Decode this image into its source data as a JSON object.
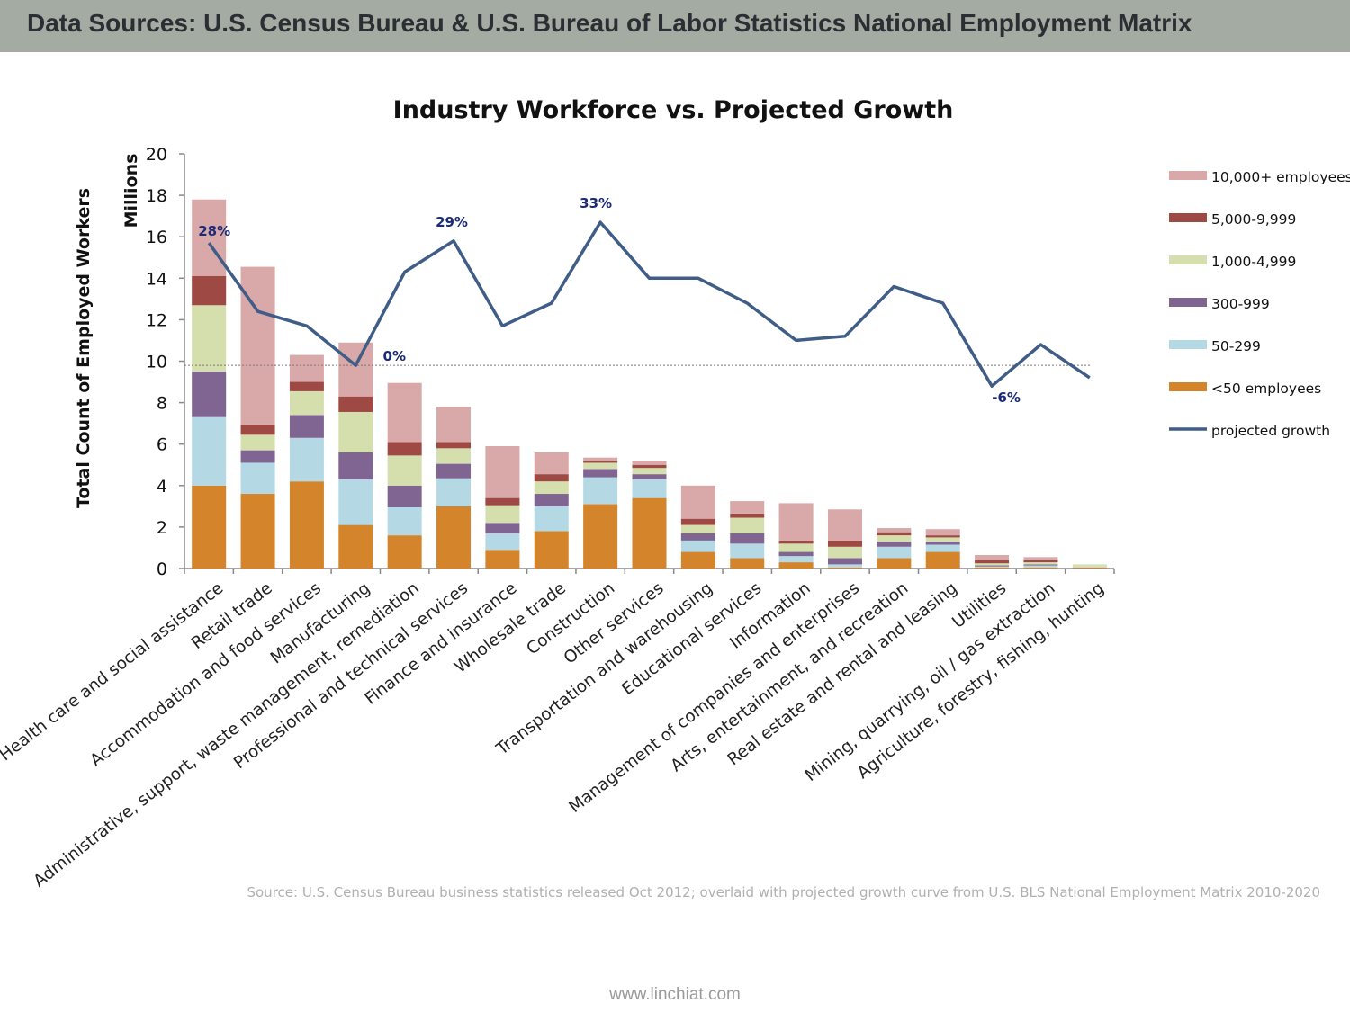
{
  "header": {
    "title": "Data Sources: U.S. Census Bureau & U.S. Bureau of Labor Statistics National Employment Matrix"
  },
  "footer": {
    "url": "www.linchiat.com"
  },
  "chart_data": {
    "type": "bar",
    "stacked": true,
    "title": "Industry Workforce vs. Projected Growth",
    "ylabel": "Total Count of Employed Workers",
    "yunit": "Millions",
    "ylim": [
      0,
      20
    ],
    "yticks": [
      "0",
      "2",
      "4",
      "6",
      "8",
      "10",
      "12",
      "14",
      "16",
      "18",
      "20"
    ],
    "categories": [
      "Health care and social assistance",
      "Retail trade",
      "Accommodation and food services",
      "Manufacturing",
      "Administrative, support, waste management, remediation",
      "Professional and technical services",
      "Finance and insurance",
      "Wholesale trade",
      "Construction",
      "Other services",
      "Transportation and warehousing",
      "Educational services",
      "Information",
      "Management of companies and enterprises",
      "Arts, entertainment, and recreation",
      "Real estate and rental and leasing",
      "Utilities",
      "Mining, quarrying, oil / gas extraction",
      "Agriculture, forestry, fishing, hunting"
    ],
    "series": [
      {
        "name": "<50 employees",
        "color": "#d4842a",
        "values": [
          4.0,
          3.6,
          4.2,
          2.1,
          1.6,
          3.0,
          0.9,
          1.8,
          3.1,
          3.4,
          0.8,
          0.5,
          0.3,
          0.05,
          0.5,
          0.8,
          0.05,
          0.05,
          0.05
        ]
      },
      {
        "name": "50-299",
        "color": "#b4d9e5",
        "values": [
          3.3,
          1.5,
          2.1,
          2.2,
          1.35,
          1.35,
          0.8,
          1.2,
          1.3,
          0.9,
          0.55,
          0.7,
          0.3,
          0.15,
          0.55,
          0.35,
          0.05,
          0.1,
          0.05
        ]
      },
      {
        "name": "300-999",
        "color": "#806593",
        "values": [
          2.2,
          0.6,
          1.1,
          1.3,
          1.05,
          0.7,
          0.5,
          0.6,
          0.4,
          0.25,
          0.35,
          0.5,
          0.2,
          0.3,
          0.25,
          0.15,
          0.05,
          0.05,
          0.0
        ]
      },
      {
        "name": "1,000-4,999",
        "color": "#d5dfad",
        "values": [
          3.2,
          0.75,
          1.15,
          1.95,
          1.45,
          0.75,
          0.85,
          0.6,
          0.3,
          0.3,
          0.4,
          0.75,
          0.4,
          0.55,
          0.3,
          0.2,
          0.1,
          0.1,
          0.1
        ]
      },
      {
        "name": "5,000-9,999",
        "color": "#9e4944",
        "values": [
          1.4,
          0.5,
          0.45,
          0.75,
          0.65,
          0.3,
          0.35,
          0.35,
          0.1,
          0.15,
          0.3,
          0.2,
          0.15,
          0.3,
          0.15,
          0.1,
          0.15,
          0.1,
          0.0
        ]
      },
      {
        "name": "10,000+ employees",
        "color": "#d9a8a8",
        "values": [
          3.7,
          7.6,
          1.3,
          2.6,
          2.85,
          1.7,
          2.5,
          1.05,
          0.15,
          0.2,
          1.6,
          0.6,
          1.8,
          1.5,
          0.2,
          0.3,
          0.25,
          0.15,
          0.0
        ]
      }
    ],
    "line": {
      "name": "projected growth",
      "color": "#3f5d86",
      "baseline_value": 0.0,
      "baseline_level": 9.8,
      "values": [
        15.7,
        12.4,
        11.7,
        9.8,
        14.3,
        15.8,
        11.7,
        12.8,
        16.7,
        14.0,
        14.0,
        12.8,
        11.0,
        11.2,
        13.6,
        12.8,
        8.8,
        10.8,
        9.2
      ],
      "labels": [
        {
          "index": 0,
          "text": "28%"
        },
        {
          "index": 3,
          "text": "0%"
        },
        {
          "index": 5,
          "text": "29%"
        },
        {
          "index": 8,
          "text": "33%"
        },
        {
          "index": 16,
          "text": "-6%"
        }
      ]
    },
    "legend": {
      "placement": "right",
      "order": [
        "10,000+ employees",
        "5,000-9,999",
        "1,000-4,999",
        "300-999",
        "50-299",
        "<50 employees",
        "projected growth"
      ]
    },
    "source_note": "Source: U.S. Census Bureau business statistics released Oct 2012; overlaid with projected growth curve from U.S. BLS National Employment Matrix 2010-2020"
  }
}
